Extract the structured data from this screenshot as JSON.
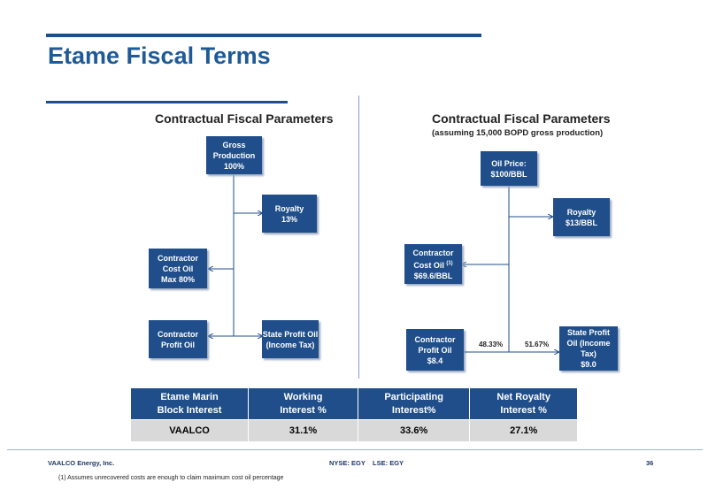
{
  "page": {
    "title": "Etame Fiscal Terms",
    "left_heading": "Contractual Fiscal Parameters",
    "right_heading": "Contractual Fiscal Parameters",
    "right_subheading": "(assuming 15,000 BOPD gross production)"
  },
  "left_diagram": {
    "gross": "Gross\nProduction\n100%",
    "royalty": "Royalty\n13%",
    "cost_oil": "Contractor\nCost Oil\nMax 80%",
    "profit_oil": "Contractor\nProfit Oil",
    "state_profit": "State Profit Oil\n(Income Tax)"
  },
  "right_diagram": {
    "oil_price": "Oil Price:\n$100/BBL",
    "royalty": "Royalty\n$13/BBL",
    "cost_oil_line1": "Contractor",
    "cost_oil_line2": "Cost Oil",
    "cost_oil_sup": "(1)",
    "cost_oil_line3": "$69.6/BBL",
    "profit_oil": "Contractor\nProfit Oil\n$8.4",
    "state_profit": "State Profit\nOil (Income\nTax)\n$9.0",
    "pct_contractor": "48.33%",
    "pct_state": "51.67%"
  },
  "table": {
    "headers": [
      "Etame Marin\nBlock Interest",
      "Working\nInterest %",
      "Participating\nInterest%",
      "Net Royalty\nInterest %"
    ],
    "row": [
      "VAALCO",
      "31.1%",
      "33.6%",
      "27.1%"
    ]
  },
  "footer": {
    "company": "VAALCO Energy, Inc.",
    "tickers": "NYSE: EGY    LSE: EGY",
    "page_number": "36",
    "footnote": "(1) Assumes unrecovered  costs are enough to claim maximum cost oil percentage"
  },
  "colors": {
    "box_fill": "#1f4e8a",
    "title": "#1f5a96",
    "table_row": "#d9d9d9"
  }
}
